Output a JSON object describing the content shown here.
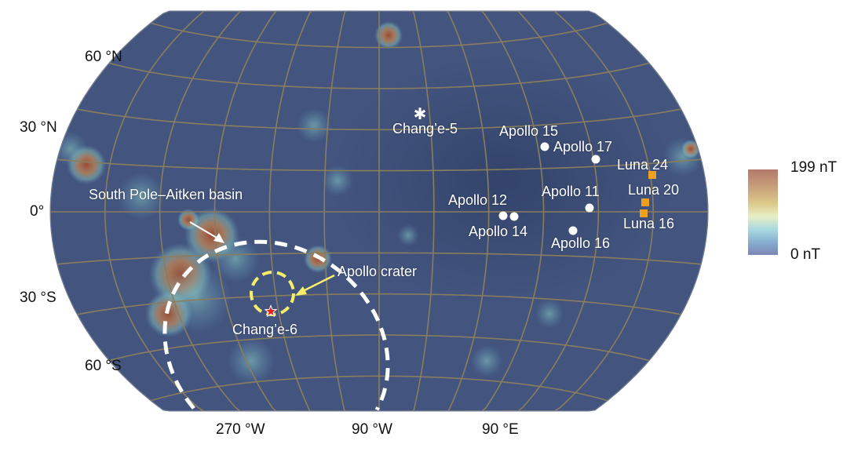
{
  "latitude_labels": [
    "60 °N",
    "30 °N",
    "0°",
    "30 °S",
    "60 °S"
  ],
  "longitude_labels": [
    "270 °W",
    "90 °W",
    "90 °E"
  ],
  "colorbar": {
    "max_label": "199 nT",
    "min_label": "0 nT",
    "colors": [
      "#b4796c",
      "#dcc98a",
      "#e7efc6",
      "#a9d9df",
      "#7c86b5"
    ]
  },
  "sites": {
    "change5": "Chang’e-5",
    "apollo15": "Apollo 15",
    "apollo17": "Apollo 17",
    "luna24": "Luna 24",
    "luna20": "Luna 20",
    "apollo11": "Apollo 11",
    "apollo12": "Apollo 12",
    "luna16": "Luna 16",
    "apollo14": "Apollo 14",
    "apollo16": "Apollo 16",
    "change6": "Chang’e-6"
  },
  "annotations": {
    "spa_basin": "South Pole–Aitken basin",
    "apollo_crater": "Apollo crater"
  },
  "colors": {
    "background": "#3f5078",
    "graticule": "#8a7d5e",
    "apollo_crater": "#f6ee6a",
    "luna_marker": "#f0a020",
    "change6_star": "#e02020"
  }
}
